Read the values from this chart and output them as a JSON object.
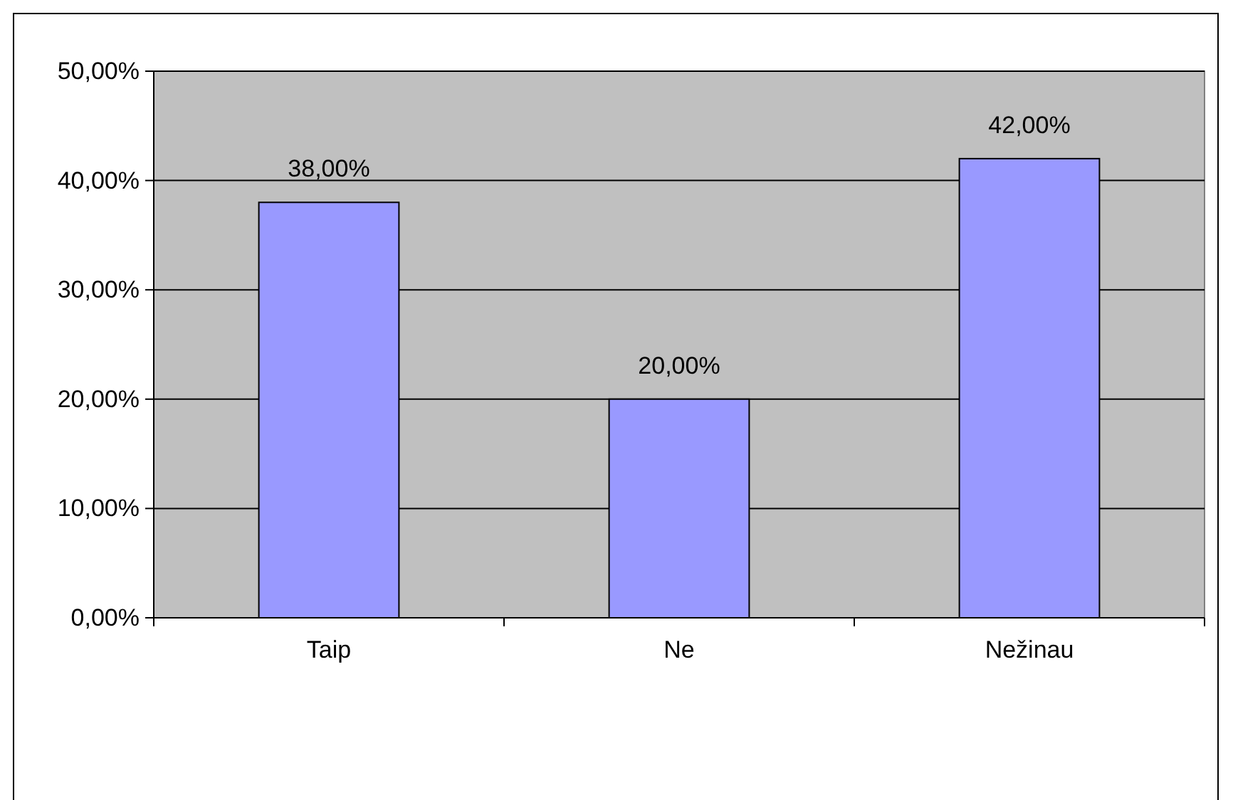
{
  "chart_data": {
    "type": "bar",
    "categories": [
      "Taip",
      "Ne",
      "Nežinau"
    ],
    "values": [
      38,
      20,
      42
    ],
    "value_labels": [
      "38,00%",
      "20,00%",
      "42,00%"
    ],
    "color": "#9999ff",
    "ylim": [
      0,
      50
    ],
    "yticks": [
      {
        "value": 0,
        "label": "0,00%"
      },
      {
        "value": 10,
        "label": "10,00%"
      },
      {
        "value": 20,
        "label": "20,00%"
      },
      {
        "value": 30,
        "label": "30,00%"
      },
      {
        "value": 40,
        "label": "40,00%"
      },
      {
        "value": 50,
        "label": "50,00%"
      }
    ],
    "grid": "y"
  }
}
